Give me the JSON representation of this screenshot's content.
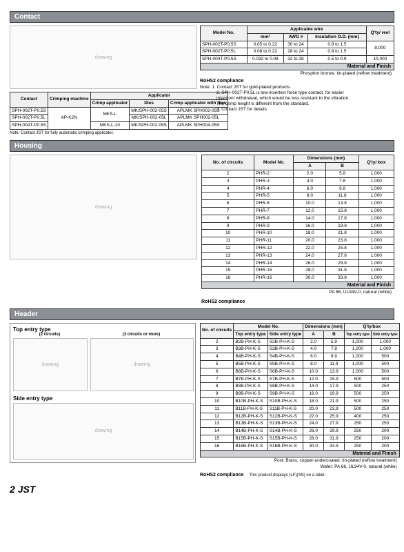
{
  "contact": {
    "title": "Contact",
    "applicator_table": {
      "headers": {
        "c1": "Contact",
        "c2": "Crimping\nmachine",
        "c3": "Applicator",
        "c3a": "Crimp applicator",
        "c3b": "Dies",
        "c3c": "Crimp applicator with dies"
      },
      "rows": [
        {
          "contact": "SPH-002T-P0.5S",
          "machine": "AP-K2N",
          "crimp": "MKS-L",
          "dies": "MK/SPH-002-05S",
          "cad": "APLMK SPH002-05S"
        },
        {
          "contact": "SPH-002T-P0.5L",
          "machine": "",
          "crimp": "",
          "dies": "MK/SPH-002-05L",
          "cad": "APLMK SPH002-05L"
        },
        {
          "contact": "SPH-004T-P0.5S",
          "machine": "",
          "crimp": "MKS-L-10",
          "dies": "MK/SPH-002-05S",
          "cad": "APLMK SPH004-05S"
        }
      ],
      "note": "Note: Contact JST for fully automatic crimping applicator."
    },
    "wire_table": {
      "headers": {
        "c1": "Model No.",
        "c2": "Applicable wire",
        "c2a": "mm²",
        "c2b": "AWG #",
        "c2c": "Insulation O.D. (mm)",
        "c3": "Q'ty/\nreel"
      },
      "rows": [
        {
          "model": "SPH-002T-P0.5S",
          "mm": "0.05 to 0.22",
          "awg": "30 to 24",
          "od": "0.8 to 1.5",
          "qty": "8,000"
        },
        {
          "model": "SPH-002T-P0.5L",
          "mm": "0.08 to 0.22",
          "awg": "28 to 24",
          "od": "0.8 to 1.5",
          "qty": ""
        },
        {
          "model": "SPH-004T-P0.5S",
          "mm": "0.032 to 0.08",
          "awg": "32 to 28",
          "od": "0.5 to 0.9",
          "qty": "10,000"
        }
      ]
    },
    "mf_label": "Material and Finish",
    "mf_text": "Phosphor bronze, tin-plated (reflow treatment)",
    "rohs": "RoHS2 compliance",
    "notes": [
      "Note: 1. Contact JST for gold-plated products.",
      "2. SPH-002T-P0.5L is low-insertion force type contact, for easier",
      "insertion/ withdrawal, which would be less resistant to the vibration.",
      "The crimp height is different from the standard.",
      "3. Contact JST for details."
    ]
  },
  "housing": {
    "title": "Housing",
    "headers": {
      "c1": "No. of\ncircuits",
      "c2": "Model No.",
      "c3": "Dimensions (mm)",
      "c3a": "A",
      "c3b": "B",
      "c4": "Q'ty/\nbox"
    },
    "rows": [
      {
        "n": "2",
        "m": "PHR-2",
        "a": "2.0",
        "b": "5.8",
        "q": "1,000"
      },
      {
        "n": "3",
        "m": "PHR-3",
        "a": "4.0",
        "b": "7.8",
        "q": "1,000"
      },
      {
        "n": "4",
        "m": "PHR-4",
        "a": "6.0",
        "b": "9.8",
        "q": "1,000"
      },
      {
        "n": "5",
        "m": "PHR-5",
        "a": "8.0",
        "b": "11.8",
        "q": "1,000"
      },
      {
        "n": "6",
        "m": "PHR-6",
        "a": "10.0",
        "b": "13.8",
        "q": "1,000"
      },
      {
        "n": "7",
        "m": "PHR-7",
        "a": "12.0",
        "b": "15.8",
        "q": "1,000"
      },
      {
        "n": "8",
        "m": "PHR-8",
        "a": "14.0",
        "b": "17.8",
        "q": "1,000"
      },
      {
        "n": "9",
        "m": "PHR-9",
        "a": "16.0",
        "b": "19.8",
        "q": "1,000"
      },
      {
        "n": "10",
        "m": "PHR-10",
        "a": "18.0",
        "b": "21.8",
        "q": "1,000"
      },
      {
        "n": "11",
        "m": "PHR-11",
        "a": "20.0",
        "b": "23.8",
        "q": "1,000"
      },
      {
        "n": "12",
        "m": "PHR-12",
        "a": "22.0",
        "b": "25.8",
        "q": "1,000"
      },
      {
        "n": "13",
        "m": "PHR-13",
        "a": "24.0",
        "b": "27.8",
        "q": "1,000"
      },
      {
        "n": "14",
        "m": "PHR-14",
        "a": "26.0",
        "b": "29.8",
        "q": "1,000"
      },
      {
        "n": "15",
        "m": "PHR-15",
        "a": "28.0",
        "b": "31.8",
        "q": "1,000"
      },
      {
        "n": "16",
        "m": "PHR-16",
        "a": "30.0",
        "b": "33.8",
        "q": "1,000"
      }
    ],
    "mf_label": "Material and Finish",
    "mf_text": "PA 66, UL94V-0, natural (white)",
    "rohs": "RoHS2 compliance"
  },
  "header": {
    "title": "Header",
    "top_label": "Top entry type",
    "top_sub1": "(2 circuits)",
    "top_sub2": "(3 circuits or more)",
    "side_label": "Side entry type",
    "headers": {
      "c1": "No. of\ncircuits",
      "c2": "Model No.",
      "c2a": "Top entry type",
      "c2b": "Side entry type",
      "c3": "Dimensions (mm)",
      "c3a": "A",
      "c3b": "B",
      "c4": "Q'ty/box",
      "c4a": "Top entry type",
      "c4b": "Side entry type"
    },
    "rows": [
      {
        "n": "2",
        "t": "B2B-PH-K-S",
        "s": "S2B-PH-K-S",
        "a": "2.0",
        "b": "5.9",
        "qt": "1,000",
        "qs": "1,000"
      },
      {
        "n": "3",
        "t": "B3B-PH-K-S",
        "s": "S3B-PH-K-S",
        "a": "4.0",
        "b": "7.9",
        "qt": "1,000",
        "qs": "1,000"
      },
      {
        "n": "4",
        "t": "B4B-PH-K-S",
        "s": "S4B-PH-K-S",
        "a": "6.0",
        "b": "9.9",
        "qt": "1,000",
        "qs": "500"
      },
      {
        "n": "5",
        "t": "B5B-PH-K-S",
        "s": "S5B-PH-K-S",
        "a": "8.0",
        "b": "11.9",
        "qt": "1,000",
        "qs": "500"
      },
      {
        "n": "6",
        "t": "B6B-PH-K-S",
        "s": "S6B-PH-K-S",
        "a": "10.0",
        "b": "13.9",
        "qt": "1,000",
        "qs": "500"
      },
      {
        "n": "7",
        "t": "B7B-PH-K-S",
        "s": "S7B-PH-K-S",
        "a": "12.0",
        "b": "15.9",
        "qt": "500",
        "qs": "500"
      },
      {
        "n": "8",
        "t": "B8B-PH-K-S",
        "s": "S8B-PH-K-S",
        "a": "14.0",
        "b": "17.9",
        "qt": "500",
        "qs": "250"
      },
      {
        "n": "9",
        "t": "B9B-PH-K-S",
        "s": "S9B-PH-K-S",
        "a": "16.0",
        "b": "19.9",
        "qt": "500",
        "qs": "250"
      },
      {
        "n": "10",
        "t": "B10B-PH-K-S",
        "s": "S10B-PH-K-S",
        "a": "18.0",
        "b": "21.9",
        "qt": "500",
        "qs": "250"
      },
      {
        "n": "11",
        "t": "B11B-PH-K-S",
        "s": "S11B-PH-K-S",
        "a": "20.0",
        "b": "23.9",
        "qt": "500",
        "qs": "250"
      },
      {
        "n": "12",
        "t": "B12B-PH-K-S",
        "s": "S12B-PH-K-S",
        "a": "22.0",
        "b": "25.9",
        "qt": "400",
        "qs": "250"
      },
      {
        "n": "13",
        "t": "B13B-PH-K-S",
        "s": "S13B-PH-K-S",
        "a": "24.0",
        "b": "27.9",
        "qt": "250",
        "qs": "250"
      },
      {
        "n": "14",
        "t": "B14B-PH-K-S",
        "s": "S14B-PH-K-S",
        "a": "26.0",
        "b": "29.9",
        "qt": "250",
        "qs": "200"
      },
      {
        "n": "15",
        "t": "B15B-PH-K-S",
        "s": "S15B-PH-K-S",
        "a": "28.0",
        "b": "31.9",
        "qt": "250",
        "qs": "200"
      },
      {
        "n": "16",
        "t": "B16B-PH-K-S",
        "s": "S16B-PH-K-S",
        "a": "30.0",
        "b": "33.9",
        "qt": "250",
        "qs": "200"
      }
    ],
    "mf_label": "Material and Finish",
    "mf_text1": "Post: Brass, copper-undercoated, tin-plated (reflow treatment)",
    "mf_text2": "Wafer: PA 66, UL94V-0, natural (white)",
    "rohs": "RoHS2 compliance",
    "rohs_note": "This product displays (LF)(SN) on a label."
  },
  "page_num": "2",
  "brand": "JST"
}
